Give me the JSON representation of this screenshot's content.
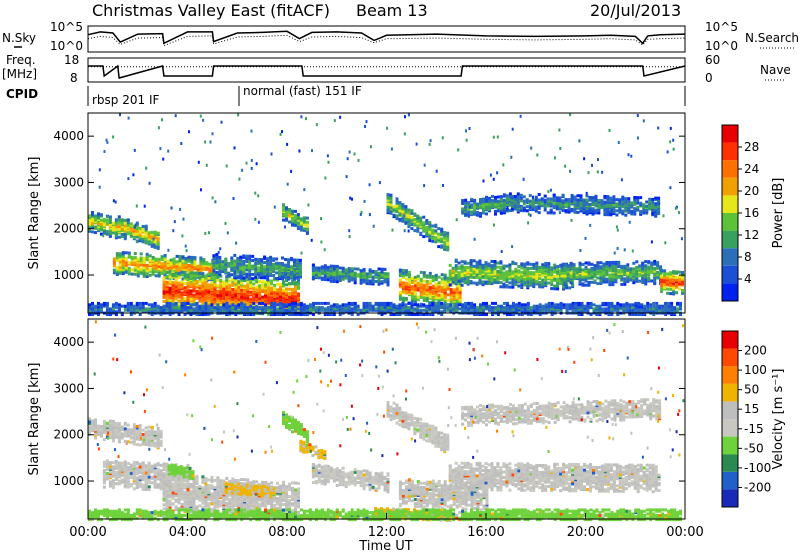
{
  "header": {
    "title": "Christmas Valley East (fitACF)",
    "beam": "Beam 13",
    "date": "20/Jul/2013"
  },
  "colors": {
    "power": [
      "#0022ee",
      "#1a4fd6",
      "#2a6fb8",
      "#3aa060",
      "#5cc23a",
      "#e6e61a",
      "#f0a000",
      "#ff7000",
      "#ff3000",
      "#e80000"
    ],
    "velocity": [
      "#1a2ab8",
      "#2060c8",
      "#2a8a50",
      "#6ed23a",
      "#c8c8c0",
      "#bebebe",
      "#f0b400",
      "#ff8000",
      "#ff4800",
      "#e80000"
    ]
  },
  "chart_data": [
    {
      "type": "line",
      "name": "noise",
      "left_label": "N.Sky",
      "right_label": "N.Search",
      "left_ticks": [
        "10^5",
        "10^0"
      ],
      "right_ticks": [
        "10^5",
        "10^0"
      ],
      "x_hours": [
        0,
        0.5,
        1,
        1.3,
        2,
        3,
        3.05,
        4,
        5,
        5.05,
        6,
        7,
        8,
        8.5,
        9,
        10,
        11,
        11.5,
        12,
        14,
        16,
        18,
        20,
        21,
        22,
        22.3,
        22.5,
        23,
        24
      ],
      "sky": [
        2.5,
        3.0,
        2.8,
        1.2,
        2.6,
        2.7,
        1.0,
        3.0,
        3.0,
        1.3,
        2.8,
        2.9,
        3.1,
        1.8,
        2.9,
        3.0,
        2.8,
        1.5,
        2.4,
        2.6,
        2.3,
        2.2,
        2.3,
        2.4,
        2.2,
        1.0,
        2.3,
        2.5,
        2.6
      ],
      "search": [
        1.8,
        2.2,
        2.0,
        0.8,
        1.9,
        2.0,
        0.6,
        2.2,
        2.3,
        0.9,
        2.1,
        2.2,
        2.4,
        1.3,
        2.1,
        2.2,
        2.0,
        1.1,
        1.8,
        1.9,
        1.7,
        1.6,
        1.7,
        1.8,
        1.6,
        0.7,
        1.7,
        1.8,
        1.9
      ]
    },
    {
      "type": "line",
      "name": "frequency",
      "left_label": "Freq.",
      "left_unit": "[MHz]",
      "left_ticks": [
        "18",
        "8"
      ],
      "right_label": "Nave",
      "right_ticks": [
        "60",
        "0"
      ],
      "x_hours": [
        0,
        0.6,
        0.65,
        1.2,
        1.25,
        3.0,
        3.05,
        5.0,
        5.05,
        8.6,
        8.65,
        15.0,
        15.05,
        22.3,
        22.35,
        24
      ],
      "freq": [
        15,
        15,
        10,
        15,
        9,
        15,
        10,
        10,
        15,
        15,
        10,
        10,
        15,
        15,
        10,
        15
      ],
      "nave": [
        40,
        40,
        40,
        40,
        40,
        40,
        40,
        40,
        40,
        40,
        40,
        40,
        40,
        40,
        40,
        40
      ]
    },
    {
      "type": "table",
      "name": "cpid",
      "label": "CPID",
      "segments": [
        {
          "start": 0,
          "end": 6,
          "text": "rbsp 201 IF"
        },
        {
          "start": 6,
          "end": 24,
          "text": "normal (fast) 151 IF"
        }
      ]
    },
    {
      "type": "heatmap",
      "name": "power",
      "ylabel": "Slant Range [km]",
      "yticks": [
        "1000",
        "2000",
        "3000",
        "4000"
      ],
      "ylim": [
        180,
        4500
      ],
      "colorbar_label": "Power [dB]",
      "colorbar_ticks": [
        "4",
        "8",
        "12",
        "16",
        "20",
        "24",
        "28"
      ],
      "clim": [
        0,
        30
      ],
      "bands": [
        {
          "t0": 0.0,
          "t1": 1.5,
          "r0": 2200,
          "r1": 2000,
          "w": 220,
          "v": 18
        },
        {
          "t0": 1.2,
          "t1": 2.8,
          "r0": 2100,
          "r1": 1800,
          "w": 200,
          "v": 20
        },
        {
          "t0": 1.0,
          "t1": 5.0,
          "r0": 1300,
          "r1": 1150,
          "w": 250,
          "v": 22
        },
        {
          "t0": 3.0,
          "t1": 8.5,
          "r0": 700,
          "r1": 500,
          "w": 450,
          "v": 27
        },
        {
          "t0": 5.0,
          "t1": 8.5,
          "r0": 1250,
          "r1": 1150,
          "w": 250,
          "v": 12
        },
        {
          "t0": 7.8,
          "t1": 8.8,
          "r0": 2400,
          "r1": 2100,
          "w": 180,
          "v": 16
        },
        {
          "t0": 9.0,
          "t1": 12.0,
          "r0": 1100,
          "r1": 1000,
          "w": 180,
          "v": 12
        },
        {
          "t0": 12.0,
          "t1": 14.5,
          "r0": 2600,
          "r1": 1700,
          "w": 220,
          "v": 16
        },
        {
          "t0": 12.5,
          "t1": 15.0,
          "r0": 800,
          "r1": 650,
          "w": 350,
          "v": 24
        },
        {
          "t0": 14.5,
          "t1": 19.5,
          "r0": 1100,
          "r1": 1000,
          "w": 280,
          "v": 16
        },
        {
          "t0": 15.0,
          "t1": 17.0,
          "r0": 2450,
          "r1": 2600,
          "w": 200,
          "v": 12
        },
        {
          "t0": 17.0,
          "t1": 23.0,
          "r0": 2600,
          "r1": 2500,
          "w": 200,
          "v": 10
        },
        {
          "t0": 19.0,
          "t1": 23.0,
          "r0": 1050,
          "r1": 1100,
          "w": 250,
          "v": 14
        },
        {
          "t0": 23.0,
          "t1": 24.0,
          "r0": 900,
          "r1": 850,
          "w": 250,
          "v": 26
        },
        {
          "t0": 0.0,
          "t1": 24.0,
          "r0": 300,
          "r1": 300,
          "w": 150,
          "v": 8
        }
      ]
    },
    {
      "type": "heatmap",
      "name": "velocity",
      "ylabel": "Slant Range [km]",
      "yticks": [
        "1000",
        "2000",
        "3000",
        "4000"
      ],
      "ylim": [
        180,
        4500
      ],
      "xlabel": "Time UT",
      "xticks": [
        "00:00",
        "04:00",
        "08:00",
        "12:00",
        "16:00",
        "20:00",
        "00:00"
      ],
      "xlim": [
        0,
        24
      ],
      "colorbar_label": "Velocity [m s⁻¹]",
      "colorbar_ticks": [
        "200",
        "100",
        "50",
        "15",
        "-15",
        "-50",
        "-100",
        "-200"
      ],
      "clim": [
        -250,
        250
      ],
      "bands": [
        {
          "t0": 0.0,
          "t1": 3.0,
          "r0": 2200,
          "r1": 1950,
          "w": 220,
          "v": 0
        },
        {
          "t0": 0.6,
          "t1": 4.0,
          "r0": 1200,
          "r1": 1100,
          "w": 300,
          "v": 0
        },
        {
          "t0": 3.0,
          "t1": 8.5,
          "r0": 800,
          "r1": 600,
          "w": 400,
          "v": 0
        },
        {
          "t0": 3.2,
          "t1": 4.2,
          "r0": 1300,
          "r1": 1200,
          "w": 120,
          "v": -70
        },
        {
          "t0": 5.5,
          "t1": 7.5,
          "r0": 900,
          "r1": 800,
          "w": 120,
          "v": 60
        },
        {
          "t0": 7.8,
          "t1": 8.8,
          "r0": 2400,
          "r1": 2000,
          "w": 160,
          "v": -80
        },
        {
          "t0": 8.5,
          "t1": 9.5,
          "r0": 1800,
          "r1": 1600,
          "w": 120,
          "v": 60
        },
        {
          "t0": 9.0,
          "t1": 12.0,
          "r0": 1200,
          "r1": 1000,
          "w": 200,
          "v": 0
        },
        {
          "t0": 12.0,
          "t1": 14.5,
          "r0": 2600,
          "r1": 1800,
          "w": 200,
          "v": 0
        },
        {
          "t0": 12.5,
          "t1": 16.0,
          "r0": 800,
          "r1": 700,
          "w": 300,
          "v": 0
        },
        {
          "t0": 14.5,
          "t1": 23.0,
          "r0": 1150,
          "r1": 1100,
          "w": 300,
          "v": 0
        },
        {
          "t0": 15.0,
          "t1": 23.0,
          "r0": 2450,
          "r1": 2600,
          "w": 220,
          "v": 0
        },
        {
          "t0": 11.5,
          "t1": 14.5,
          "r0": 350,
          "r1": 300,
          "w": 120,
          "v": 60
        },
        {
          "t0": 0.0,
          "t1": 24.0,
          "r0": 280,
          "r1": 280,
          "w": 140,
          "v": -80
        }
      ]
    }
  ]
}
